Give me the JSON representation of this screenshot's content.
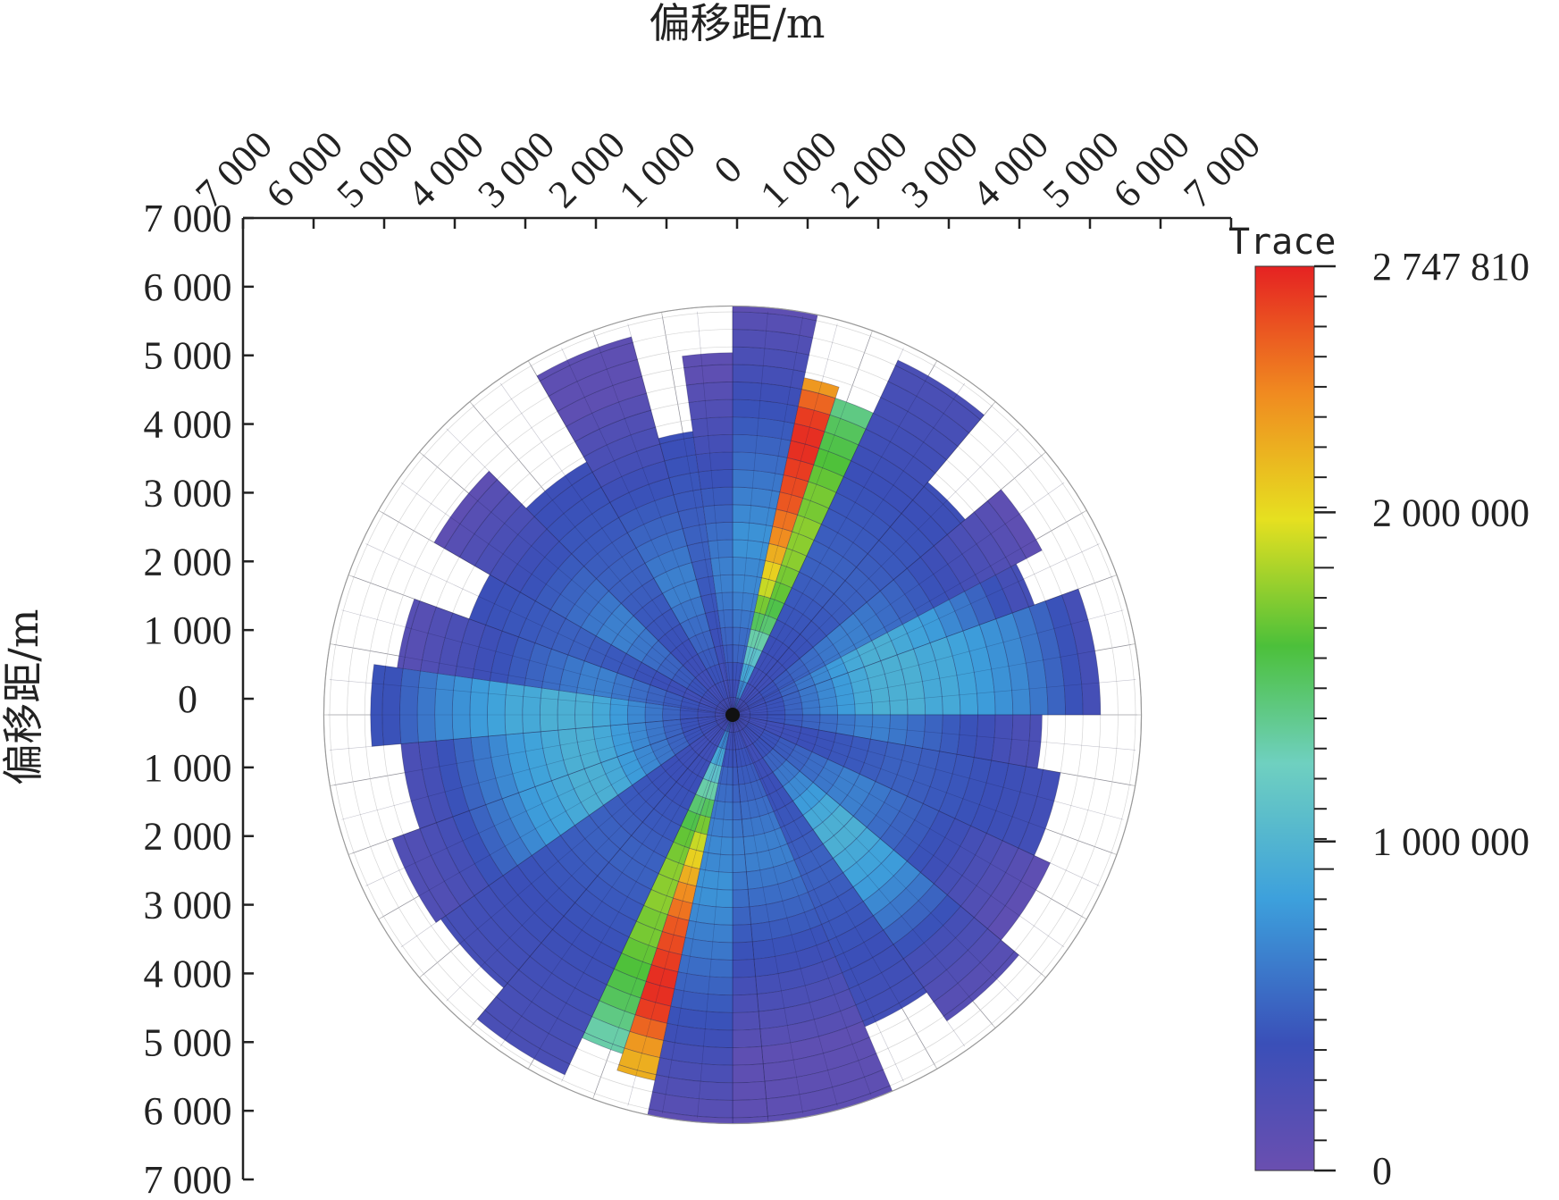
{
  "chart_data": {
    "type": "heatmap",
    "subtype": "polar-rose",
    "x_axis_title": "偏移距/m",
    "y_axis_title": "偏移距/m",
    "x_tick_labels": [
      "7 000",
      "6 000",
      "5 000",
      "4 000",
      "3 000",
      "2 000",
      "1 000",
      "0",
      "1 000",
      "2 000",
      "3 000",
      "4 000",
      "5 000",
      "6 000",
      "7 000"
    ],
    "y_tick_labels": [
      "7 000",
      "6 000",
      "5 000",
      "4 000",
      "3 000",
      "2 000",
      "1 000",
      "0",
      "1 000",
      "2 000",
      "3 000",
      "4 000",
      "5 000",
      "6 000",
      "7 000"
    ],
    "offset_range": [
      0,
      7000
    ],
    "colorbar": {
      "title": "Trace",
      "min": 0,
      "max": 2747810,
      "labels": [
        "2 747 810",
        "2 000 000",
        "1 000 000",
        "0"
      ],
      "label_values": [
        2747810,
        2000000,
        1000000,
        0
      ],
      "colormap": [
        "#6a4fb0",
        "#3a4fb8",
        "#3da0dc",
        "#6fd0c0",
        "#4cc03a",
        "#e6e020",
        "#f08a20",
        "#e52222"
      ]
    },
    "ring_edges_m": [
      0,
      300,
      600,
      900,
      1200,
      1500,
      1800,
      2100,
      2400,
      2700,
      3000,
      3300,
      3600,
      3900,
      4200,
      4500,
      4800,
      5100,
      5400,
      5700,
      6000,
      6300,
      6600,
      6900,
      7000
    ],
    "sectors": [
      {
        "az_start": 0,
        "az_end": 12,
        "max_offset": 7000,
        "values": [
          300000,
          350000,
          400000,
          500000,
          550000,
          600000,
          650000,
          700000,
          700000,
          750000,
          750000,
          700000,
          650000,
          600000,
          550000,
          500000,
          450000,
          400000,
          350000,
          300000,
          250000,
          200000,
          150000,
          100000
        ]
      },
      {
        "az_start": 12,
        "az_end": 18,
        "max_offset": 5900,
        "values": [
          500000,
          700000,
          900000,
          1100000,
          1300000,
          1500000,
          1700000,
          1900000,
          2050000,
          2200000,
          2350000,
          2450000,
          2550000,
          2600000,
          2650000,
          2700000,
          2700000,
          2650000,
          2500000,
          2300000
        ]
      },
      {
        "az_start": 18,
        "az_end": 25,
        "max_offset": 5700,
        "values": [
          500000,
          700000,
          900000,
          1100000,
          1300000,
          1450000,
          1550000,
          1650000,
          1700000,
          1750000,
          1750000,
          1750000,
          1700000,
          1700000,
          1650000,
          1600000,
          1550000,
          1500000,
          1400000
        ]
      },
      {
        "az_start": 25,
        "az_end": 40,
        "max_offset": 6700,
        "values": [
          300000,
          320000,
          340000,
          360000,
          380000,
          400000,
          420000,
          440000,
          460000,
          480000,
          480000,
          460000,
          440000,
          420000,
          400000,
          380000,
          360000,
          340000,
          320000,
          300000,
          280000,
          260000
        ]
      },
      {
        "az_start": 40,
        "az_end": 50,
        "max_offset": 5200,
        "values": [
          300000,
          320000,
          340000,
          360000,
          380000,
          400000,
          420000,
          440000,
          460000,
          480000,
          480000,
          460000,
          440000,
          420000,
          400000,
          380000,
          360000
        ]
      },
      {
        "az_start": 50,
        "az_end": 62,
        "max_offset": 6000,
        "values": [
          300000,
          350000,
          400000,
          450000,
          500000,
          550000,
          600000,
          650000,
          650000,
          600000,
          550000,
          500000,
          450000,
          400000,
          350000,
          300000,
          250000,
          200000,
          150000,
          100000
        ]
      },
      {
        "az_start": 62,
        "az_end": 70,
        "max_offset": 5500,
        "values": [
          300000,
          350000,
          400000,
          500000,
          600000,
          700000,
          800000,
          900000,
          950000,
          950000,
          900000,
          850000,
          800000,
          700000,
          600000,
          500000,
          400000,
          300000
        ]
      },
      {
        "az_start": 70,
        "az_end": 90,
        "max_offset": 6300,
        "values": [
          300000,
          350000,
          400000,
          500000,
          600000,
          700000,
          800000,
          900000,
          950000,
          950000,
          950000,
          900000,
          900000,
          850000,
          800000,
          750000,
          700000,
          600000,
          500000,
          400000,
          300000
        ]
      },
      {
        "az_start": 90,
        "az_end": 100,
        "max_offset": 5300,
        "values": [
          300000,
          350000,
          400000,
          450000,
          500000,
          550000,
          600000,
          650000,
          650000,
          600000,
          550000,
          500000,
          450000,
          400000,
          350000,
          300000,
          250000
        ]
      },
      {
        "az_start": 100,
        "az_end": 115,
        "max_offset": 5700,
        "values": [
          300000,
          320000,
          340000,
          360000,
          380000,
          400000,
          420000,
          440000,
          460000,
          480000,
          480000,
          460000,
          440000,
          420000,
          400000,
          380000,
          360000,
          340000,
          320000
        ]
      },
      {
        "az_start": 115,
        "az_end": 130,
        "max_offset": 6000,
        "values": [
          300000,
          350000,
          400000,
          450000,
          500000,
          550000,
          600000,
          650000,
          650000,
          600000,
          550000,
          500000,
          450000,
          400000,
          350000,
          300000,
          250000,
          200000,
          150000,
          100000
        ]
      },
      {
        "az_start": 130,
        "az_end": 145,
        "max_offset": 6400,
        "values": [
          300000,
          350000,
          400000,
          500000,
          600000,
          700000,
          800000,
          900000,
          950000,
          950000,
          900000,
          850000,
          800000,
          700000,
          600000,
          500000,
          400000,
          300000,
          250000,
          200000,
          150000
        ]
      },
      {
        "az_start": 145,
        "az_end": 157,
        "max_offset": 5800,
        "values": [
          300000,
          320000,
          340000,
          360000,
          380000,
          400000,
          420000,
          440000,
          460000,
          480000,
          480000,
          460000,
          440000,
          420000,
          400000,
          380000,
          360000,
          340000,
          320000
        ]
      },
      {
        "az_start": 157,
        "az_end": 175,
        "max_offset": 7000,
        "values": [
          300000,
          350000,
          400000,
          450000,
          500000,
          550000,
          600000,
          650000,
          650000,
          600000,
          550000,
          500000,
          450000,
          400000,
          350000,
          300000,
          250000,
          200000,
          150000,
          100000,
          100000,
          100000,
          100000,
          100000
        ]
      },
      {
        "az_start": 175,
        "az_end": 180,
        "max_offset": 7000,
        "values": [
          300000,
          350000,
          400000,
          450000,
          500000,
          550000,
          600000,
          650000,
          650000,
          600000,
          550000,
          500000,
          450000,
          400000,
          350000,
          300000,
          250000,
          200000,
          150000,
          100000,
          100000,
          100000,
          100000,
          100000
        ]
      },
      {
        "az_start": 180,
        "az_end": 192,
        "max_offset": 7000,
        "values": [
          300000,
          350000,
          400000,
          500000,
          550000,
          600000,
          650000,
          700000,
          700000,
          750000,
          750000,
          700000,
          650000,
          600000,
          550000,
          500000,
          450000,
          400000,
          350000,
          300000,
          250000,
          200000,
          150000,
          100000
        ]
      },
      {
        "az_start": 192,
        "az_end": 198,
        "max_offset": 6400,
        "values": [
          500000,
          700000,
          900000,
          1100000,
          1300000,
          1500000,
          1700000,
          1900000,
          2050000,
          2200000,
          2350000,
          2450000,
          2550000,
          2600000,
          2650000,
          2700000,
          2700000,
          2650000,
          2500000,
          2300000,
          2200000
        ]
      },
      {
        "az_start": 198,
        "az_end": 205,
        "max_offset": 6100,
        "values": [
          500000,
          700000,
          900000,
          1100000,
          1300000,
          1450000,
          1550000,
          1650000,
          1700000,
          1750000,
          1750000,
          1750000,
          1700000,
          1700000,
          1650000,
          1600000,
          1550000,
          1500000,
          1400000,
          1300000
        ]
      },
      {
        "az_start": 205,
        "az_end": 220,
        "max_offset": 6800,
        "values": [
          300000,
          320000,
          340000,
          360000,
          380000,
          400000,
          420000,
          440000,
          460000,
          480000,
          480000,
          460000,
          440000,
          420000,
          400000,
          380000,
          360000,
          340000,
          320000,
          300000,
          280000,
          260000
        ]
      },
      {
        "az_start": 220,
        "az_end": 235,
        "max_offset": 6100,
        "values": [
          300000,
          320000,
          340000,
          360000,
          380000,
          400000,
          420000,
          440000,
          460000,
          480000,
          480000,
          460000,
          440000,
          420000,
          400000,
          380000,
          360000,
          340000,
          320000,
          300000
        ]
      },
      {
        "az_start": 235,
        "az_end": 250,
        "max_offset": 6200,
        "values": [
          300000,
          350000,
          400000,
          500000,
          600000,
          700000,
          800000,
          900000,
          950000,
          950000,
          900000,
          850000,
          800000,
          700000,
          600000,
          500000,
          400000,
          300000,
          250000,
          200000
        ]
      },
      {
        "az_start": 250,
        "az_end": 265,
        "max_offset": 5700,
        "values": [
          300000,
          350000,
          400000,
          500000,
          600000,
          700000,
          800000,
          900000,
          950000,
          950000,
          900000,
          850000,
          800000,
          700000,
          600000,
          500000,
          400000,
          300000,
          250000
        ]
      },
      {
        "az_start": 265,
        "az_end": 278,
        "max_offset": 6200,
        "values": [
          300000,
          350000,
          400000,
          500000,
          600000,
          700000,
          800000,
          900000,
          950000,
          950000,
          950000,
          900000,
          900000,
          850000,
          800000,
          750000,
          700000,
          600000,
          500000,
          400000
        ]
      },
      {
        "az_start": 278,
        "az_end": 290,
        "max_offset": 5800,
        "values": [
          300000,
          350000,
          400000,
          450000,
          500000,
          550000,
          600000,
          650000,
          650000,
          600000,
          550000,
          500000,
          450000,
          400000,
          350000,
          300000,
          250000,
          200000,
          150000
        ]
      },
      {
        "az_start": 290,
        "az_end": 300,
        "max_offset": 4800,
        "values": [
          300000,
          320000,
          340000,
          360000,
          380000,
          400000,
          420000,
          440000,
          460000,
          480000,
          480000,
          460000,
          440000,
          420000,
          400000,
          380000
        ]
      },
      {
        "az_start": 300,
        "az_end": 315,
        "max_offset": 5900,
        "values": [
          300000,
          350000,
          400000,
          450000,
          500000,
          550000,
          600000,
          650000,
          650000,
          600000,
          550000,
          500000,
          450000,
          400000,
          350000,
          300000,
          250000,
          200000,
          150000,
          100000
        ]
      },
      {
        "az_start": 315,
        "az_end": 330,
        "max_offset": 5000,
        "values": [
          300000,
          320000,
          340000,
          360000,
          380000,
          400000,
          420000,
          440000,
          460000,
          480000,
          480000,
          460000,
          440000,
          420000,
          400000,
          380000,
          360000
        ]
      },
      {
        "az_start": 330,
        "az_end": 345,
        "max_offset": 6700,
        "values": [
          300000,
          350000,
          400000,
          450000,
          500000,
          550000,
          600000,
          650000,
          650000,
          600000,
          550000,
          500000,
          450000,
          400000,
          350000,
          300000,
          250000,
          200000,
          150000,
          100000,
          100000,
          100000
        ]
      },
      {
        "az_start": 345,
        "az_end": 352,
        "max_offset": 4900,
        "values": [
          300000,
          320000,
          340000,
          360000,
          380000,
          400000,
          420000,
          440000,
          460000,
          480000,
          480000,
          460000,
          440000,
          420000,
          400000,
          380000
        ]
      },
      {
        "az_start": 352,
        "az_end": 360,
        "max_offset": 6200,
        "values": [
          300000,
          350000,
          400000,
          450000,
          500000,
          550000,
          600000,
          650000,
          650000,
          600000,
          550000,
          500000,
          450000,
          400000,
          350000,
          300000,
          250000,
          200000,
          150000,
          100000
        ]
      }
    ]
  }
}
